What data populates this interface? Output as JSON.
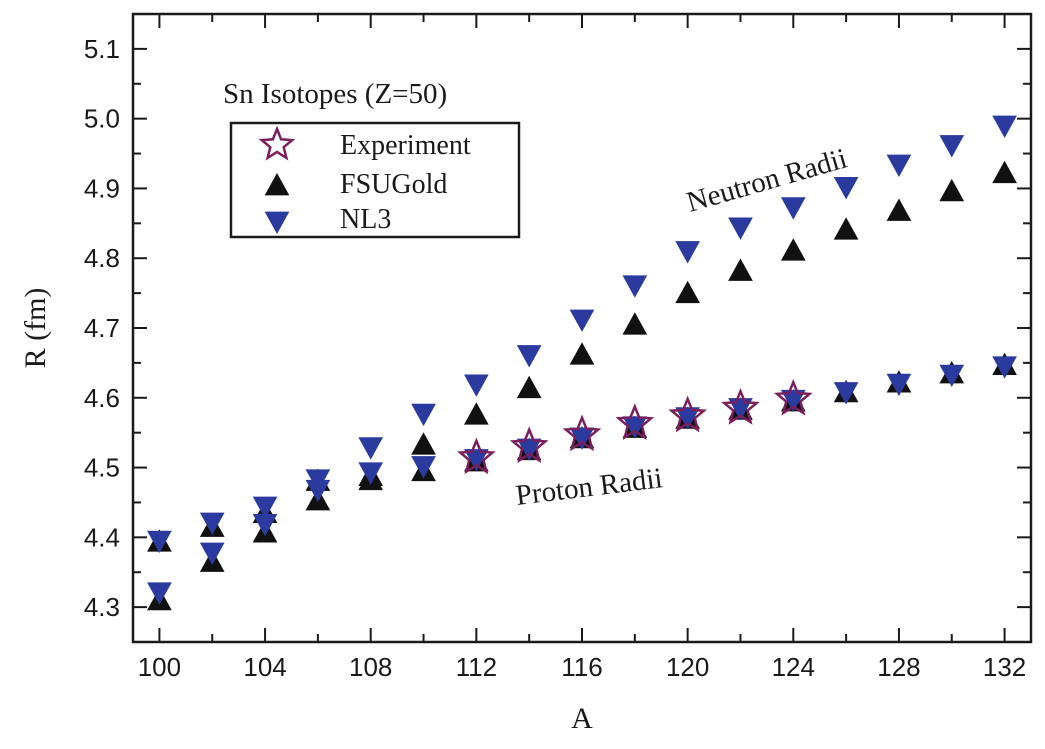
{
  "chart_data": {
    "type": "scatter",
    "title": "Sn Isotopes (Z=50)",
    "xlabel": "A",
    "ylabel": "R (fm)",
    "xlim": [
      99,
      133
    ],
    "ylim": [
      4.25,
      5.15
    ],
    "xticks": [
      100,
      104,
      108,
      112,
      116,
      120,
      124,
      128,
      132
    ],
    "yticks": [
      4.3,
      4.4,
      4.5,
      4.6,
      4.7,
      4.8,
      4.9,
      5.0,
      5.1
    ],
    "xtick_labels": [
      "100",
      "104",
      "108",
      "112",
      "116",
      "120",
      "124",
      "128",
      "132"
    ],
    "ytick_labels": [
      "4.3",
      "4.4",
      "4.5",
      "4.6",
      "4.7",
      "4.8",
      "4.9",
      "5.0",
      "5.1"
    ],
    "legend_position": "top-left",
    "annotations": [
      "Neutron Radii",
      "Proton Radii"
    ],
    "series": [
      {
        "name": "Experiment",
        "marker": "star",
        "color": "#7a1f5c",
        "x": [
          112,
          114,
          116,
          118,
          120,
          122,
          124
        ],
        "y": [
          4.514,
          4.53,
          4.547,
          4.563,
          4.574,
          4.585,
          4.598
        ]
      },
      {
        "name": "FSUGold",
        "marker": "triangle-up",
        "color": "#111111",
        "group": "neutron",
        "x": [
          100,
          102,
          104,
          106,
          108,
          110,
          112,
          114,
          116,
          118,
          120,
          122,
          124,
          126,
          128,
          130,
          132
        ],
        "y": [
          4.393,
          4.414,
          4.434,
          4.48,
          4.487,
          4.532,
          4.575,
          4.613,
          4.661,
          4.704,
          4.749,
          4.781,
          4.81,
          4.84,
          4.867,
          4.895,
          4.921
        ]
      },
      {
        "name": "NL3",
        "marker": "triangle-down",
        "color": "#2b3a9e",
        "group": "neutron",
        "x": [
          100,
          102,
          104,
          106,
          108,
          110,
          112,
          114,
          116,
          118,
          120,
          122,
          124,
          126,
          128,
          130,
          132
        ],
        "y": [
          4.396,
          4.422,
          4.445,
          4.484,
          4.53,
          4.578,
          4.62,
          4.662,
          4.713,
          4.762,
          4.811,
          4.845,
          4.874,
          4.903,
          4.935,
          4.963,
          4.991
        ]
      },
      {
        "name": "FSUGold",
        "marker": "triangle-up",
        "color": "#111111",
        "group": "proton",
        "x": [
          100,
          102,
          104,
          106,
          108,
          110,
          112,
          114,
          116,
          118,
          120,
          122,
          124,
          126,
          128,
          130,
          132
        ],
        "y": [
          4.309,
          4.364,
          4.406,
          4.452,
          4.481,
          4.494,
          4.508,
          4.524,
          4.541,
          4.556,
          4.569,
          4.582,
          4.594,
          4.607,
          4.621,
          4.634,
          4.646
        ]
      },
      {
        "name": "NL3",
        "marker": "triangle-down",
        "color": "#2b3a9e",
        "group": "proton",
        "x": [
          100,
          102,
          104,
          106,
          108,
          110,
          112,
          114,
          116,
          118,
          120,
          122,
          124,
          126,
          128,
          130,
          132
        ],
        "y": [
          4.322,
          4.379,
          4.42,
          4.469,
          4.494,
          4.503,
          4.513,
          4.528,
          4.544,
          4.56,
          4.573,
          4.586,
          4.598,
          4.609,
          4.621,
          4.634,
          4.646
        ]
      }
    ]
  }
}
